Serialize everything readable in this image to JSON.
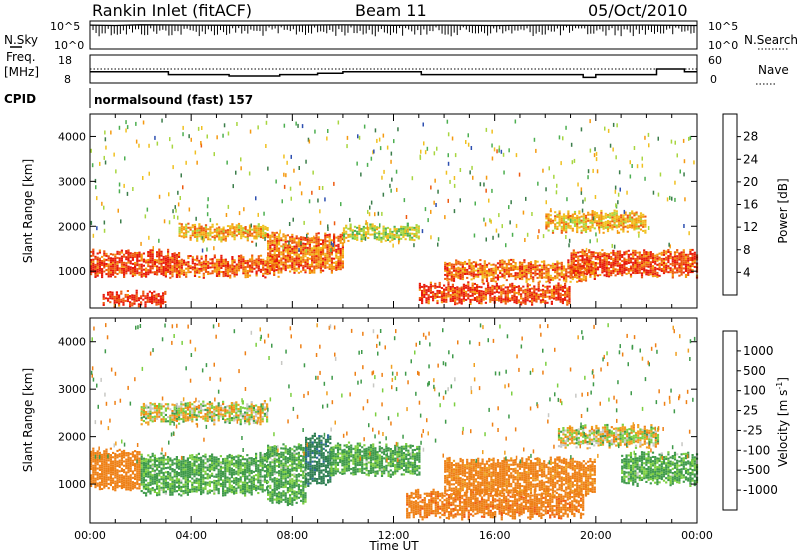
{
  "header": {
    "station": "Rankin Inlet (fitACF)",
    "beam": "Beam 11",
    "date": "05/Oct/2010"
  },
  "top_panels": {
    "nsky_label": "N.Sky",
    "nsearch_label": "N.Search",
    "freq_label_line1": "Freq.",
    "freq_label_line2": "[MHz]",
    "nave_label": "Nave",
    "cpid_label": "CPID",
    "cpid_value": "normalsound (fast) 157",
    "noise_left_ticks": [
      "10^5",
      "10^0"
    ],
    "noise_right_ticks": [
      "10^5",
      "10^0"
    ],
    "freq_ticks": [
      "18",
      "8"
    ],
    "nave_ticks": [
      "60",
      "0"
    ]
  },
  "axes": {
    "ylabel": "Slant Range [km]",
    "xlabel": "Time UT",
    "y_ticks": [
      "1000",
      "2000",
      "3000",
      "4000"
    ],
    "x_ticks": [
      "00:00",
      "04:00",
      "08:00",
      "12:00",
      "16:00",
      "20:00",
      "00:00"
    ]
  },
  "power_colorbar": {
    "label": "Power [dB]",
    "ticks": [
      "4",
      "8",
      "12",
      "16",
      "20",
      "24",
      "28"
    ],
    "colors": [
      "#1a1aff",
      "#2d4fb0",
      "#3b7d4a",
      "#4caf50",
      "#a8d640",
      "#f0c020",
      "#f59a10",
      "#ee5a10",
      "#e81a0a"
    ]
  },
  "velocity_colorbar": {
    "label": "Velocity [m s",
    "label_sup": "-1",
    "label_end": "]",
    "ticks": [
      "1000",
      "500",
      "100",
      "25",
      "-25",
      "-100",
      "-500",
      "-1000"
    ],
    "colors": [
      "#2642c0",
      "#2e6b9a",
      "#2f7f52",
      "#3f9a4a",
      "#7ccf40",
      "#c8c8c4",
      "#f0a020",
      "#ee8016",
      "#f05a10",
      "#e8200a"
    ]
  },
  "chart_data": [
    {
      "type": "line",
      "title": "",
      "ylabel": "",
      "legend": [
        "N.Sky",
        "N.Search"
      ],
      "yscale": "log",
      "ylim": [
        1,
        100000
      ],
      "xlim_hours": [
        0,
        24
      ],
      "series": [
        {
          "name": "N.Sky",
          "x": [
            0,
            1,
            2,
            4,
            6,
            8,
            10,
            12,
            14,
            16,
            18,
            20,
            22,
            24
          ],
          "y": [
            60000,
            50000,
            70000,
            60000,
            55000,
            60000,
            65000,
            55000,
            60000,
            50000,
            60000,
            55000,
            60000,
            50000
          ]
        }
      ]
    },
    {
      "type": "line",
      "title": "",
      "ylabel": "",
      "legend": [
        "Freq.",
        "Nave"
      ],
      "ylim_freq_mhz": [
        8,
        18
      ],
      "ylim_nave": [
        0,
        60
      ],
      "x_hours": [
        0,
        3,
        3.1,
        5.5,
        7.5,
        9,
        10,
        13,
        13.1,
        16,
        19,
        19.5,
        20,
        22,
        22.4,
        23.5,
        24
      ],
      "series": [
        {
          "name": "Freq.",
          "values": [
            12,
            12,
            11,
            10.5,
            11,
            11.5,
            12,
            12,
            11,
            11,
            11,
            10,
            11,
            11,
            13,
            12,
            12
          ]
        },
        {
          "name": "Nave",
          "values": []
        }
      ],
      "reference_line_mhz": 12
    },
    {
      "type": "heatmap",
      "title": "",
      "ylabel": "Slant Range [km]",
      "xlabel": "Time UT",
      "colorbar": "Power [dB]",
      "range_km": [
        180,
        4500
      ],
      "time_hours": [
        0,
        24
      ],
      "clim": [
        0,
        30
      ],
      "echo_bands": [
        {
          "t": [
            0.0,
            3.5
          ],
          "range_km": [
            900,
            1400
          ],
          "level": 27
        },
        {
          "t": [
            0.5,
            3.0
          ],
          "range_km": [
            250,
            500
          ],
          "level": 28
        },
        {
          "t": [
            3.5,
            7.5
          ],
          "range_km": [
            900,
            1300
          ],
          "level": 25
        },
        {
          "t": [
            3.5,
            7.0
          ],
          "range_km": [
            1700,
            2000
          ],
          "level": 20
        },
        {
          "t": [
            7.0,
            10.0
          ],
          "range_km": [
            1000,
            1800
          ],
          "level": 24
        },
        {
          "t": [
            10.0,
            13.0
          ],
          "range_km": [
            1700,
            2000
          ],
          "level": 16
        },
        {
          "t": [
            13.0,
            19.0
          ],
          "range_km": [
            300,
            700
          ],
          "level": 27
        },
        {
          "t": [
            14.0,
            20.0
          ],
          "range_km": [
            800,
            1200
          ],
          "level": 24
        },
        {
          "t": [
            19.0,
            24.0
          ],
          "range_km": [
            900,
            1400
          ],
          "level": 26
        },
        {
          "t": [
            18.0,
            22.0
          ],
          "range_km": [
            1900,
            2300
          ],
          "level": 20
        }
      ]
    },
    {
      "type": "heatmap",
      "title": "",
      "ylabel": "Slant Range [km]",
      "xlabel": "Time UT",
      "colorbar": "Velocity [m s-1]",
      "range_km": [
        180,
        4500
      ],
      "time_hours": [
        0,
        24
      ],
      "clim": [
        -1000,
        1000
      ],
      "echo_bands": [
        {
          "t": [
            0.0,
            2.0
          ],
          "range_km": [
            900,
            1700
          ],
          "velocity": -300
        },
        {
          "t": [
            2.0,
            7.0
          ],
          "range_km": [
            800,
            1600
          ],
          "velocity": 150
        },
        {
          "t": [
            7.0,
            8.5
          ],
          "range_km": [
            600,
            1800
          ],
          "velocity": 150
        },
        {
          "t": [
            8.5,
            9.5
          ],
          "range_km": [
            1000,
            2000
          ],
          "velocity": 900
        },
        {
          "t": [
            9.5,
            13.0
          ],
          "range_km": [
            1200,
            1800
          ],
          "velocity": 150
        },
        {
          "t": [
            12.5,
            19.5
          ],
          "range_km": [
            300,
            800
          ],
          "velocity": -400
        },
        {
          "t": [
            14.0,
            20.0
          ],
          "range_km": [
            800,
            1500
          ],
          "velocity": -200
        },
        {
          "t": [
            2.0,
            7.0
          ],
          "range_km": [
            2300,
            2700
          ],
          "velocity": 0
        },
        {
          "t": [
            18.5,
            22.5
          ],
          "range_km": [
            1800,
            2200
          ],
          "velocity": 0
        },
        {
          "t": [
            21.0,
            24.0
          ],
          "range_km": [
            1000,
            1600
          ],
          "velocity": 150
        }
      ]
    }
  ]
}
